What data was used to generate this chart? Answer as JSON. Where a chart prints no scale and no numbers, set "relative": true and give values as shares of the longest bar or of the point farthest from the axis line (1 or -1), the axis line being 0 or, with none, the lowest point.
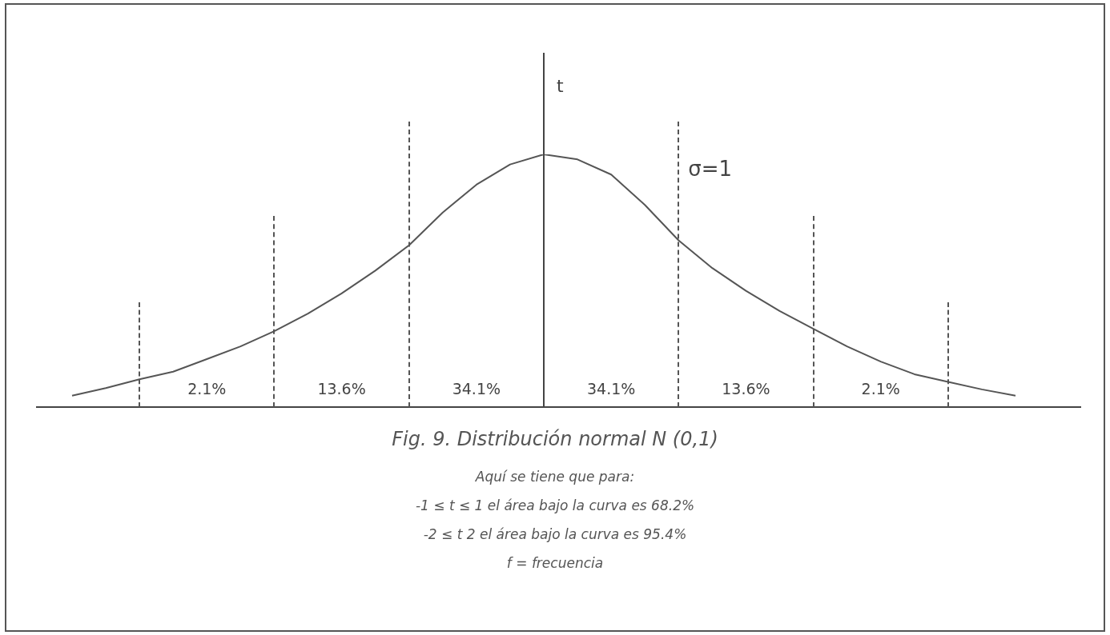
{
  "chart_data": {
    "type": "line",
    "title": "Fig. 9. Distribución normal N (0,1)",
    "ylabel": "t",
    "relative": true,
    "grid": "x",
    "legend": false,
    "marker": "none",
    "line_style": "solid",
    "categories": [
      null,
      null,
      null,
      null,
      null,
      null,
      null,
      null,
      null,
      null,
      null,
      null,
      null,
      null,
      null,
      null,
      null,
      null,
      null,
      null,
      null,
      null,
      null,
      null,
      null,
      null,
      null,
      null,
      null
    ],
    "series": [
      {
        "color": "#555555",
        "values": [
          0.045,
          0.075,
          0.11,
          0.14,
          0.19,
          0.24,
          0.3,
          0.37,
          0.45,
          0.54,
          0.64,
          0.77,
          0.88,
          0.96,
          1.0,
          0.98,
          0.92,
          0.8,
          0.66,
          0.55,
          0.46,
          0.38,
          0.31,
          0.24,
          0.18,
          0.13,
          0.1,
          0.07,
          0.045
        ]
      }
    ],
    "annotations": [
      "2.1%",
      "13.6%",
      "34.1%",
      "34.1%",
      "13.6%",
      "2.1%",
      "σ=1",
      "Aquí se tiene que para:",
      "-1 ≤ t ≤  1 el área bajo la curva es 68.2%",
      "-2 ≤  t 2 el área bajo la curva es 95.4%",
      "f = frecuencia"
    ]
  }
}
